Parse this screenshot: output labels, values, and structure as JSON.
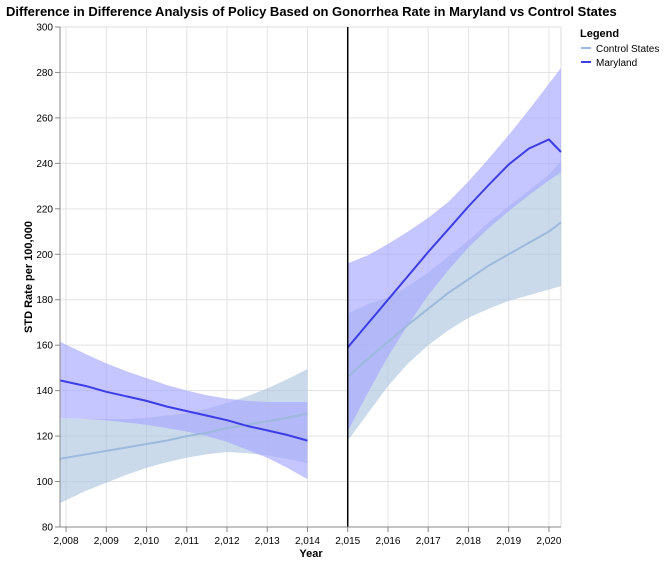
{
  "chart_data": {
    "type": "line",
    "title": "Difference in Difference Analysis of Policy Based on Gonorrhea Rate in Maryland vs Control States",
    "xlabel": "Year",
    "ylabel": "STD Rate per 100,000",
    "xlim": [
      2007.85,
      2020.3
    ],
    "ylim": [
      80,
      300
    ],
    "y_ticks": [
      80,
      100,
      120,
      140,
      160,
      180,
      200,
      220,
      240,
      260,
      280,
      300
    ],
    "x_ticks": [
      2008,
      2009,
      2010,
      2011,
      2012,
      2013,
      2014,
      2015,
      2016,
      2017,
      2018,
      2019,
      2020
    ],
    "x_tick_labels": [
      "2,008",
      "2,009",
      "2,010",
      "2,011",
      "2,012",
      "2,013",
      "2,014",
      "2,015",
      "2,016",
      "2,017",
      "2,018",
      "2,019",
      "2,020"
    ],
    "grid": true,
    "policy_year": 2015,
    "legend": {
      "title": "Legend",
      "placement": "top-right",
      "entries": [
        "Control States",
        "Maryland"
      ]
    },
    "series": [
      {
        "name": "Control States",
        "color": "#9db9db",
        "band_color": "#aec6e0",
        "segments": [
          {
            "x": [
              2007.85,
              2008.5,
              2009,
              2009.5,
              2010,
              2010.5,
              2011,
              2011.5,
              2012,
              2012.5,
              2013,
              2013.5,
              2014
            ],
            "y": [
              110,
              112,
              113.5,
              115,
              116.5,
              118,
              120,
              121.5,
              123.5,
              125,
              126.5,
              128,
              130
            ],
            "lower": [
              90.5,
              96,
              99.5,
              103,
              106,
              108.5,
              110.5,
              112,
              113,
              112.5,
              111.5,
              110,
              108
            ],
            "upper": [
              128,
              127.5,
              127.5,
              127.5,
              128,
              129,
              130,
              132,
              134.5,
              137.5,
              141,
              145,
              149.5
            ]
          },
          {
            "x": [
              2015,
              2015.5,
              2016,
              2016.5,
              2017,
              2017.5,
              2018,
              2018.5,
              2019,
              2019.5,
              2020,
              2020.3
            ],
            "y": [
              146,
              154,
              161.5,
              169,
              176,
              183,
              189,
              195,
              200,
              205,
              210,
              214
            ],
            "lower": [
              118,
              130,
              142,
              152,
              160,
              166.5,
              172,
              176,
              179.5,
              182,
              184.5,
              186
            ],
            "upper": [
              174,
              178,
              181,
              186,
              192,
              199,
              206,
              214,
              221,
              228,
              235,
              241
            ]
          }
        ]
      },
      {
        "name": "Maryland",
        "color": "#3d3de6",
        "band_color": "#a6a6ff",
        "segments": [
          {
            "x": [
              2007.85,
              2008.5,
              2009,
              2009.5,
              2010,
              2010.5,
              2011,
              2011.5,
              2012,
              2012.5,
              2013,
              2013.5,
              2014
            ],
            "y": [
              144.5,
              142,
              139.5,
              137.5,
              135.5,
              133,
              131,
              129,
              127,
              124.5,
              122.5,
              120.5,
              118
            ],
            "lower": [
              128,
              127.5,
              127,
              126,
              125,
              123.5,
              122,
              120,
              117.5,
              114,
              110.5,
              106,
              101
            ],
            "upper": [
              161.5,
              156,
              152,
              148.5,
              145.5,
              142.5,
              140,
              138,
              136.5,
              135.5,
              135,
              135,
              135
            ]
          },
          {
            "x": [
              2015,
              2015.5,
              2016,
              2016.5,
              2017,
              2017.5,
              2018,
              2018.5,
              2019,
              2019.5,
              2020,
              2020.3
            ],
            "y": [
              159,
              169.5,
              180,
              190.5,
              201,
              211,
              221,
              230.5,
              239.5,
              246.5,
              250.5,
              245
            ],
            "lower": [
              122,
              139,
              155,
              169,
              182,
              193,
              203,
              211.5,
              219,
              226,
              232.5,
              236
            ],
            "upper": [
              196,
              199.5,
              204.5,
              210,
              216,
              223,
              232,
              242,
              252.5,
              263.5,
              275,
              282
            ]
          }
        ]
      }
    ]
  }
}
